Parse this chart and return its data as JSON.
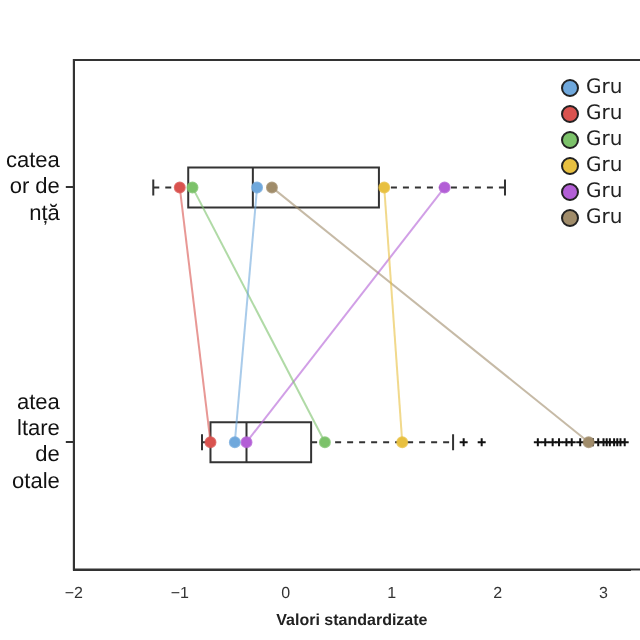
{
  "chart_data": {
    "type": "box",
    "orientation": "horizontal",
    "xlabel": "Valori standardizate",
    "categories": [
      "catea\nor de\nnță",
      "atea\nltare\nde\notale"
    ],
    "boxes": [
      {
        "low": -1.25,
        "q1": -0.92,
        "median": -0.31,
        "q3": 0.88,
        "high": 2.07
      },
      {
        "low": -0.79,
        "q1": -0.71,
        "median": -0.37,
        "q3": 0.24,
        "high": 1.58,
        "outliers": [
          1.68,
          1.85,
          2.38,
          2.45,
          2.52,
          2.58,
          2.65,
          2.7,
          2.78,
          2.85,
          2.9,
          2.95,
          3.0,
          3.03,
          3.06,
          3.1,
          3.13,
          3.16,
          3.2
        ]
      }
    ],
    "series": [
      {
        "type": "line",
        "name": "Gru",
        "color": "#6fa8dc",
        "values": [
          -0.27,
          -0.48
        ]
      },
      {
        "type": "line",
        "name": "Gru",
        "color": "#d9534f",
        "values": [
          -1.0,
          -0.71
        ]
      },
      {
        "type": "line",
        "name": "Gru",
        "color": "#7cc26a",
        "values": [
          -0.88,
          0.37
        ]
      },
      {
        "type": "line",
        "name": "Gru",
        "color": "#e8c040",
        "values": [
          0.93,
          1.1
        ]
      },
      {
        "type": "line",
        "name": "Gru",
        "color": "#b35fd6",
        "values": [
          1.5,
          -0.37
        ]
      },
      {
        "type": "line",
        "name": "Gru",
        "color": "#a08c6a",
        "values": [
          -0.13,
          2.86
        ]
      }
    ],
    "xlim": [
      -2,
      3.25
    ],
    "xticks": [
      -2,
      -1,
      0,
      1,
      2,
      3
    ],
    "marker": "circle",
    "legend": "top right",
    "grid": false
  }
}
